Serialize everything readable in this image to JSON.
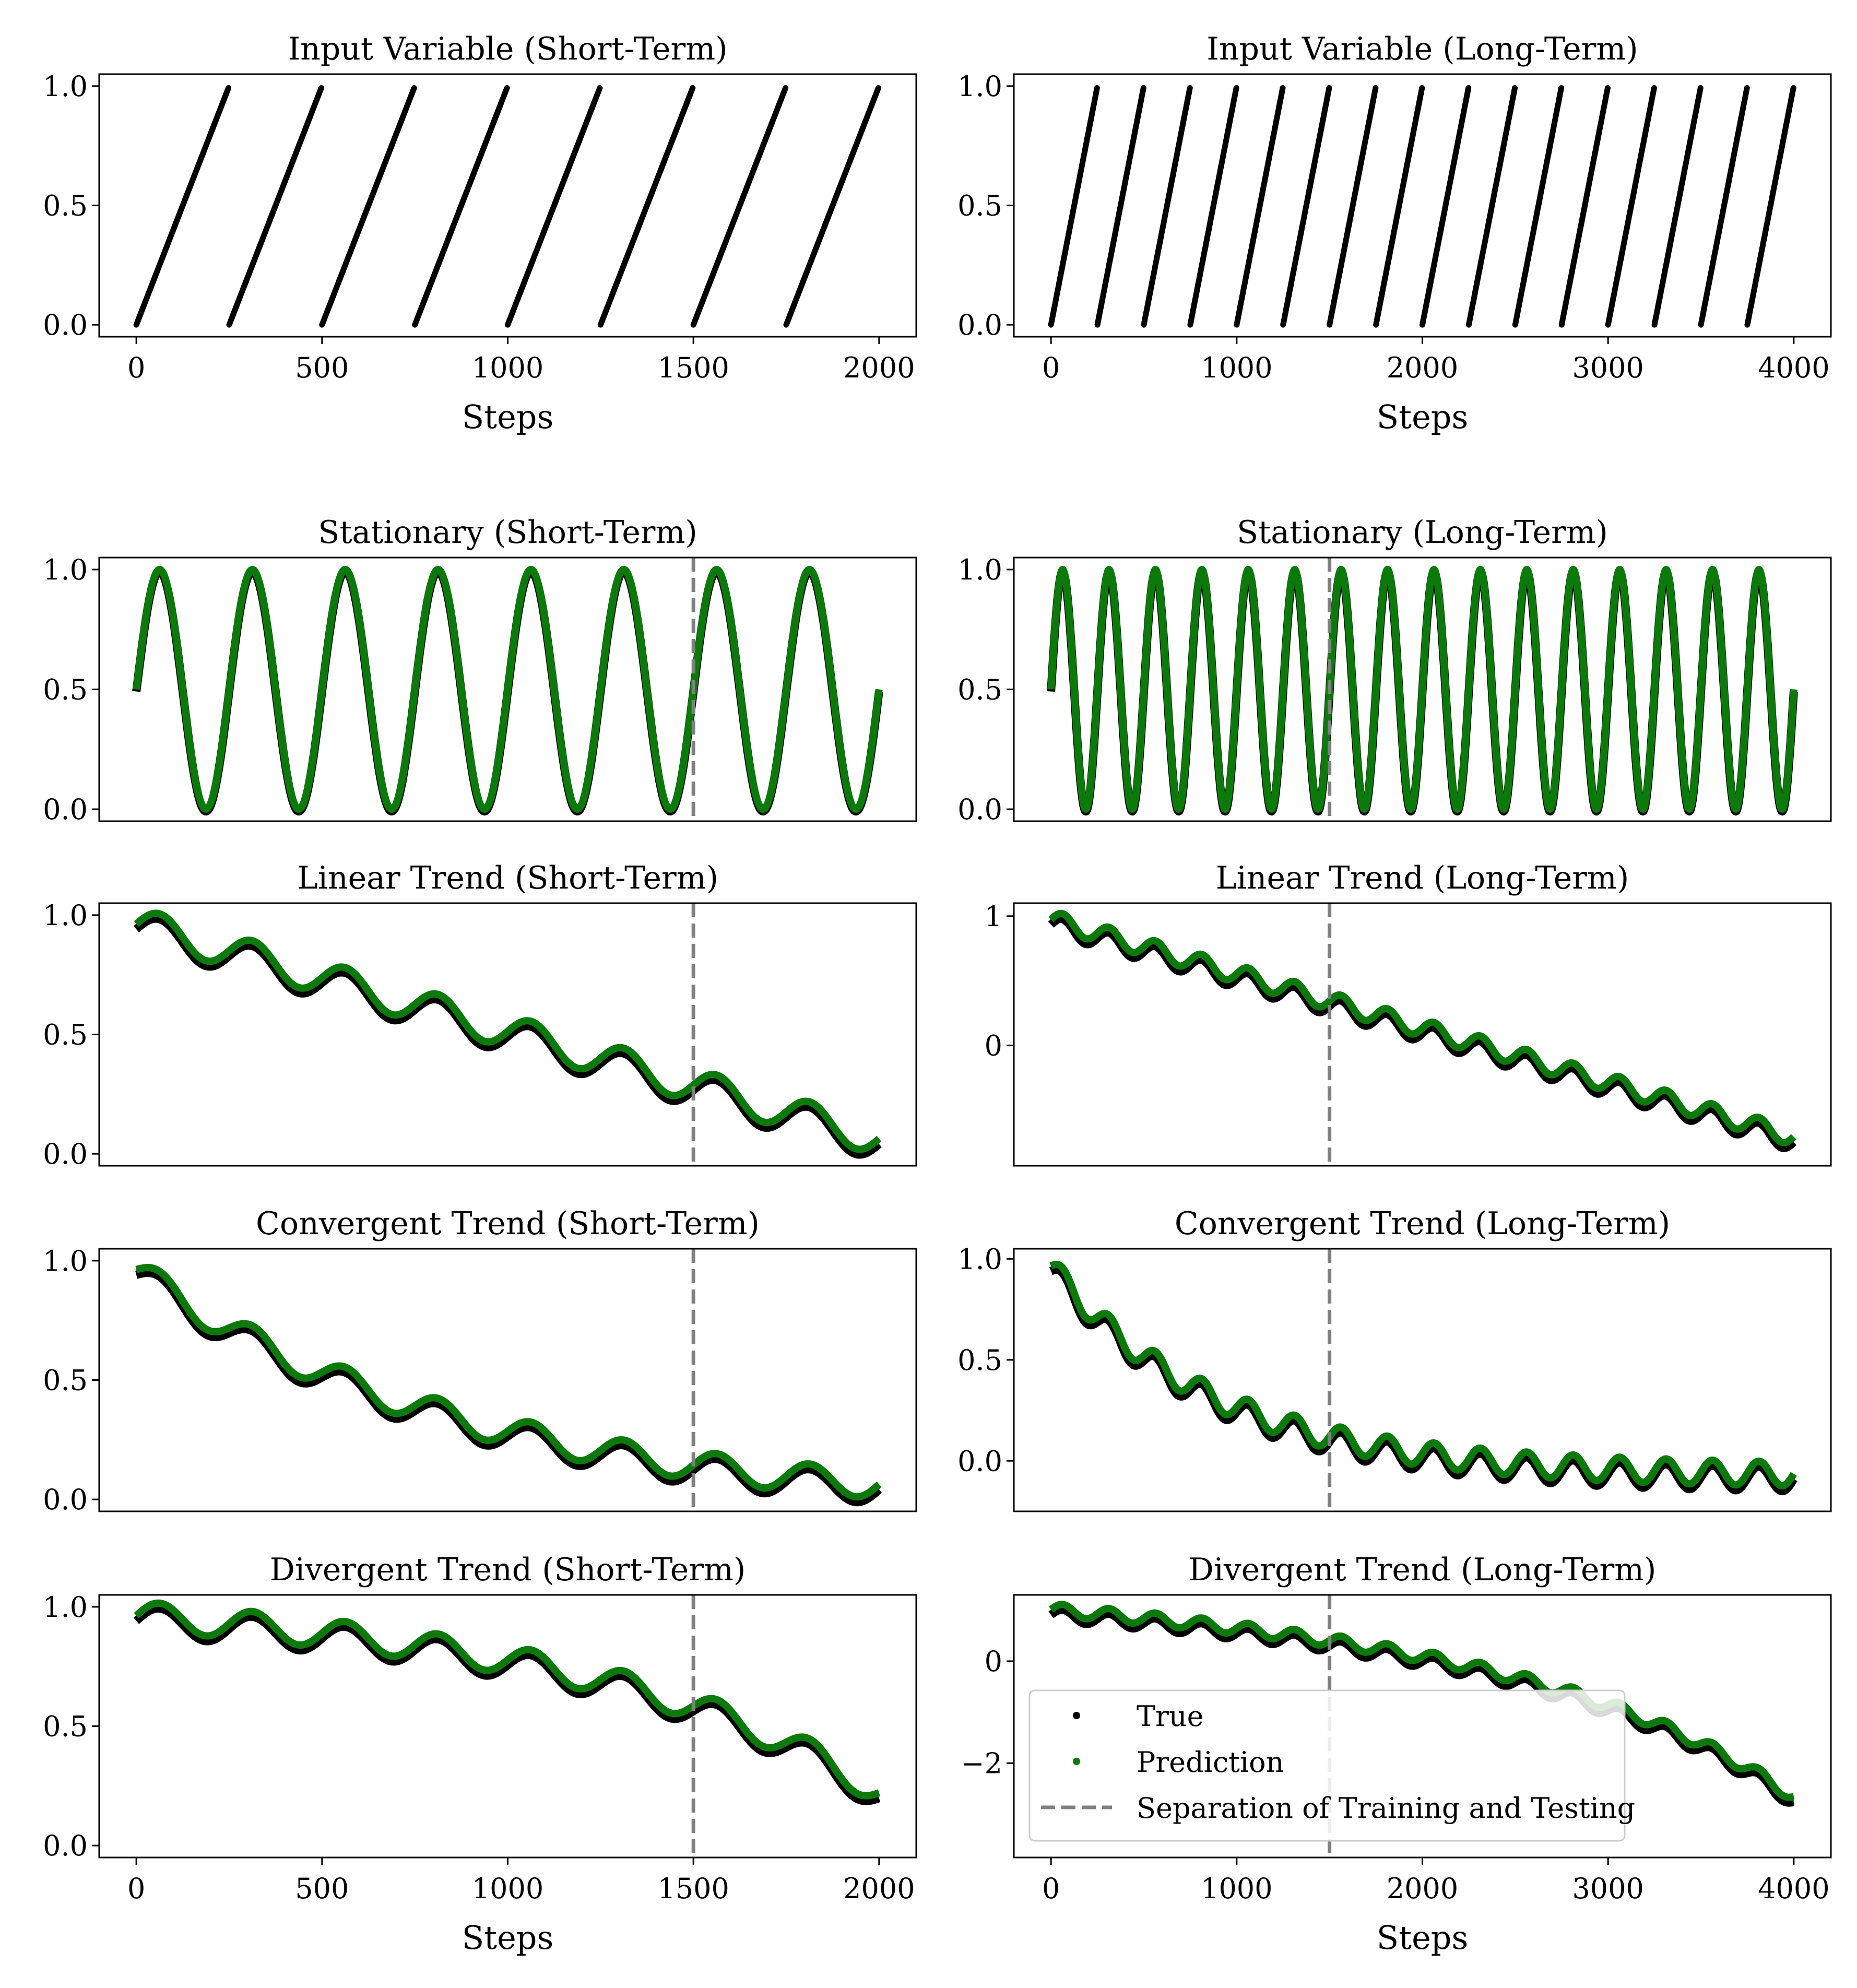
{
  "chart_data": {
    "type": "scatter",
    "legend": {
      "placement": "lower-left",
      "panel": "Divergent Trend (Long-Term)",
      "entries": [
        {
          "label": "True",
          "color": "#000000",
          "marker": "dot"
        },
        {
          "label": "Prediction",
          "color": "#0b7a0b",
          "marker": "dot"
        },
        {
          "label": "Separation of Training and Testing",
          "color": "#808080",
          "marker": "dashed-line"
        }
      ]
    },
    "colors": {
      "true": "#000000",
      "prediction": "#0b7a0b",
      "separation": "#808080"
    },
    "panels": [
      {
        "title": "Input Variable (Short-Term)",
        "kind": "sawtooth",
        "steps": 2000,
        "period": 250,
        "xticks": [
          0,
          500,
          1000,
          1500,
          2000
        ],
        "xlim": [
          -100,
          2100
        ],
        "xlabel": "Steps",
        "yticks": [
          0.0,
          0.5,
          1.0
        ],
        "ytick_labels": [
          "0.0",
          "0.5",
          "1.0"
        ],
        "ylim": [
          -0.05,
          1.05
        ],
        "split": null
      },
      {
        "title": "Input Variable (Long-Term)",
        "kind": "sawtooth",
        "steps": 4000,
        "period": 250,
        "xticks": [
          0,
          1000,
          2000,
          3000,
          4000
        ],
        "xlim": [
          -200,
          4200
        ],
        "xlabel": "Steps",
        "yticks": [
          0.0,
          0.5,
          1.0
        ],
        "ytick_labels": [
          "0.0",
          "0.5",
          "1.0"
        ],
        "ylim": [
          -0.05,
          1.05
        ],
        "split": null
      },
      {
        "title": "Stationary (Short-Term)",
        "kind": "sine",
        "steps": 2000,
        "period": 250,
        "xlim": [
          -100,
          2100
        ],
        "yticks": [
          0.0,
          0.5,
          1.0
        ],
        "ytick_labels": [
          "0.0",
          "0.5",
          "1.0"
        ],
        "ylim": [
          -0.05,
          1.05
        ],
        "split": 1500
      },
      {
        "title": "Stationary (Long-Term)",
        "kind": "sine",
        "steps": 4000,
        "period": 250,
        "xlim": [
          -200,
          4200
        ],
        "yticks": [
          0.0,
          0.5,
          1.0
        ],
        "ytick_labels": [
          "0.0",
          "0.5",
          "1.0"
        ],
        "ylim": [
          -0.05,
          1.05
        ],
        "split": 1500
      },
      {
        "title": "Linear Trend (Short-Term)",
        "kind": "linear",
        "steps": 2000,
        "period": 250,
        "trend_start": 0.95,
        "trend_end": 0.05,
        "amp": 0.07,
        "xlim": [
          -100,
          2100
        ],
        "yticks": [
          0.0,
          0.5,
          1.0
        ],
        "ytick_labels": [
          "0.0",
          "0.5",
          "1.0"
        ],
        "ylim": [
          -0.05,
          1.05
        ],
        "split": 1500
      },
      {
        "title": "Linear Trend (Long-Term)",
        "kind": "linear",
        "steps": 4000,
        "period": 250,
        "trend_start": 0.95,
        "trend_end": -0.73,
        "amp": 0.07,
        "xlim": [
          -200,
          4200
        ],
        "yticks": [
          0,
          1
        ],
        "ytick_labels": [
          "0",
          "1"
        ],
        "ylim": [
          -0.93,
          1.1
        ],
        "split": 1500
      },
      {
        "title": "Convergent Trend (Short-Term)",
        "kind": "convergent",
        "steps": 2000,
        "period": 250,
        "trend_start": 0.95,
        "trend_end": 0.05,
        "amp": 0.06,
        "decay": 900,
        "xlim": [
          -100,
          2100
        ],
        "yticks": [
          0.0,
          0.5,
          1.0
        ],
        "ytick_labels": [
          "0.0",
          "0.5",
          "1.0"
        ],
        "ylim": [
          -0.05,
          1.05
        ],
        "split": 1500
      },
      {
        "title": "Convergent Trend (Long-Term)",
        "kind": "convergent",
        "steps": 4000,
        "period": 250,
        "trend_start": 0.95,
        "trend_end": -0.08,
        "amp": 0.06,
        "decay": 900,
        "xlim": [
          -200,
          4200
        ],
        "yticks": [
          0.0,
          0.5,
          1.0
        ],
        "ytick_labels": [
          "0.0",
          "0.5",
          "1.0"
        ],
        "ylim": [
          -0.25,
          1.05
        ],
        "split": 1500
      },
      {
        "title": "Divergent Trend (Short-Term)",
        "kind": "divergent",
        "steps": 2000,
        "period": 250,
        "trend_start": 0.95,
        "trend_end": 0.05,
        "amp": 0.06,
        "xticks": [
          0,
          500,
          1000,
          1500,
          2000
        ],
        "xlim": [
          -100,
          2100
        ],
        "xlabel": "Steps",
        "yticks": [
          0.0,
          0.5,
          1.0
        ],
        "ytick_labels": [
          "0.0",
          "0.5",
          "1.0"
        ],
        "ylim": [
          -0.05,
          1.05
        ],
        "split": 1500
      },
      {
        "title": "Divergent Trend (Long-Term)",
        "kind": "divergent",
        "steps": 4000,
        "period": 250,
        "trend_start": 0.95,
        "trend_end": -3.5,
        "amp": 0.12,
        "xticks": [
          0,
          1000,
          2000,
          3000,
          4000
        ],
        "xlim": [
          -200,
          4200
        ],
        "xlabel": "Steps",
        "yticks": [
          -2,
          0
        ],
        "ytick_labels": [
          "−2",
          "0"
        ],
        "ylim": [
          -3.85,
          1.3
        ],
        "split": 1500
      }
    ]
  }
}
